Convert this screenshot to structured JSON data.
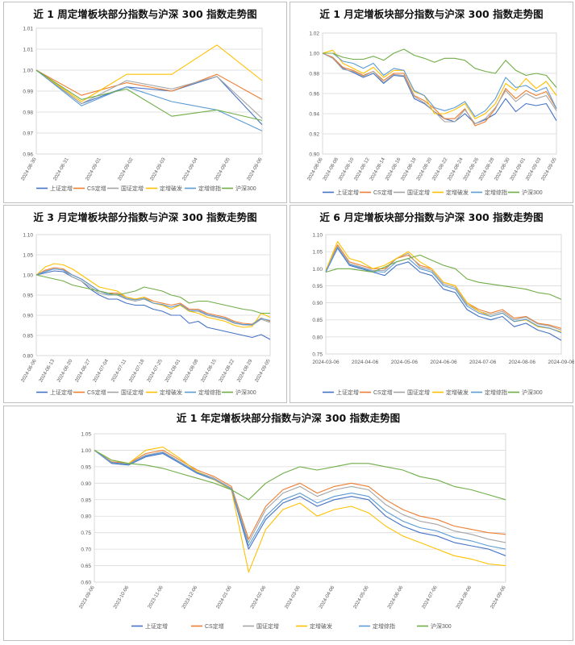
{
  "series_colors": [
    "#4472c4",
    "#ed7d31",
    "#a5a5a5",
    "#ffc000",
    "#5b9bd5",
    "#70ad47"
  ],
  "chart_data": [
    {
      "type": "line",
      "title": "近 1 周定增板块部分指数与沪深 300 指数走势图",
      "yticks": [
        "0.96",
        "0.97",
        "0.98",
        "0.99",
        "1.00",
        "1.01",
        "1.01"
      ],
      "ylim": [
        0.96,
        1.02
      ],
      "xticks": [
        "2024-08-30",
        "2024-08-31",
        "2024-09-01",
        "2024-09-02",
        "2024-09-03",
        "2024-09-04",
        "2024-09-05",
        "2024-09-06"
      ],
      "x": [
        "2024-08-30",
        "2024-09-02",
        "2024-09-03",
        "2024-09-04",
        "2024-09-05",
        "2024-09-06"
      ],
      "series": [
        {
          "name": "上证定增",
          "values": [
            1.0,
            0.984,
            0.992,
            0.99,
            0.997,
            0.974
          ]
        },
        {
          "name": "CS定增",
          "values": [
            1.0,
            0.988,
            0.994,
            0.99,
            0.998,
            0.986
          ]
        },
        {
          "name": "国证定增",
          "values": [
            1.0,
            0.984,
            0.995,
            0.991,
            0.997,
            0.977
          ]
        },
        {
          "name": "定增破发",
          "values": [
            1.0,
            0.985,
            0.998,
            0.998,
            1.012,
            0.995
          ]
        },
        {
          "name": "定增综指",
          "values": [
            1.0,
            0.983,
            0.992,
            0.985,
            0.981,
            0.971
          ]
        },
        {
          "name": "沪深300",
          "values": [
            1.0,
            0.986,
            0.991,
            0.978,
            0.981,
            0.976
          ]
        }
      ]
    },
    {
      "type": "line",
      "title": "近 1 月定增板块部分指数与沪深 300 指数走势图",
      "yticks": [
        "0.90",
        "0.92",
        "0.94",
        "0.96",
        "0.98",
        "1.00",
        "1.02"
      ],
      "ylim": [
        0.9,
        1.02
      ],
      "xticks": [
        "2024-08-06",
        "2024-08-08",
        "2024-08-10",
        "2024-08-12",
        "2024-08-14",
        "2024-08-16",
        "2024-08-18",
        "2024-08-20",
        "2024-08-22",
        "2024-08-24",
        "2024-08-26",
        "2024-08-28",
        "2024-08-30",
        "2024-09-01",
        "2024-09-03",
        "2024-09-05"
      ],
      "x": [
        "08-06",
        "08-07",
        "08-08",
        "08-09",
        "08-12",
        "08-13",
        "08-14",
        "08-15",
        "08-16",
        "08-19",
        "08-20",
        "08-21",
        "08-22",
        "08-23",
        "08-26",
        "08-27",
        "08-28",
        "08-29",
        "08-30",
        "09-02",
        "09-03",
        "09-04",
        "09-05",
        "09-06"
      ],
      "series": [
        {
          "name": "上证定增",
          "values": [
            1.0,
            0.995,
            0.985,
            0.981,
            0.976,
            0.98,
            0.97,
            0.978,
            0.977,
            0.955,
            0.95,
            0.942,
            0.935,
            0.932,
            0.94,
            0.93,
            0.934,
            0.94,
            0.955,
            0.942,
            0.95,
            0.948,
            0.95,
            0.933
          ]
        },
        {
          "name": "CS定增",
          "values": [
            1.0,
            0.996,
            0.986,
            0.983,
            0.978,
            0.982,
            0.973,
            0.98,
            0.98,
            0.958,
            0.953,
            0.945,
            0.935,
            0.935,
            0.945,
            0.928,
            0.932,
            0.945,
            0.965,
            0.955,
            0.963,
            0.958,
            0.962,
            0.945
          ]
        },
        {
          "name": "国证定增",
          "values": [
            1.0,
            0.995,
            0.984,
            0.982,
            0.977,
            0.982,
            0.971,
            0.979,
            0.978,
            0.957,
            0.951,
            0.942,
            0.932,
            0.932,
            0.944,
            0.93,
            0.935,
            0.946,
            0.963,
            0.952,
            0.96,
            0.955,
            0.958,
            0.943
          ]
        },
        {
          "name": "定增破发",
          "values": [
            1.0,
            1.003,
            0.99,
            0.985,
            0.98,
            0.986,
            0.976,
            0.983,
            0.983,
            0.962,
            0.958,
            0.94,
            0.94,
            0.944,
            0.95,
            0.935,
            0.94,
            0.95,
            0.97,
            0.963,
            0.975,
            0.965,
            0.972,
            0.958
          ]
        },
        {
          "name": "定增综指",
          "values": [
            1.0,
            1.0,
            0.992,
            0.99,
            0.985,
            0.99,
            0.978,
            0.985,
            0.983,
            0.963,
            0.958,
            0.946,
            0.943,
            0.946,
            0.952,
            0.937,
            0.943,
            0.955,
            0.976,
            0.966,
            0.968,
            0.962,
            0.966,
            0.945
          ]
        },
        {
          "name": "沪深300",
          "values": [
            1.0,
            1.0,
            0.996,
            0.994,
            0.994,
            0.997,
            0.993,
            1.0,
            1.004,
            0.998,
            0.995,
            0.991,
            0.995,
            0.995,
            0.993,
            0.985,
            0.982,
            0.98,
            0.993,
            0.983,
            0.978,
            0.98,
            0.978,
            0.966
          ]
        }
      ]
    },
    {
      "type": "line",
      "title": "近 3 月定增板块部分指数与沪深 300 指数走势图",
      "yticks": [
        "0.80",
        "0.85",
        "0.90",
        "0.95",
        "1.00",
        "1.05",
        "1.10"
      ],
      "ylim": [
        0.8,
        1.1
      ],
      "xticks": [
        "2024-06-06",
        "2024-06-13",
        "2024-06-20",
        "2024-06-27",
        "2024-07-04",
        "2024-07-11",
        "2024-07-18",
        "2024-07-25",
        "2024-08-01",
        "2024-08-08",
        "2024-08-15",
        "2024-08-22",
        "2024-08-29",
        "2024-09-05"
      ],
      "x": [
        "06-06",
        "06-10",
        "06-13",
        "06-17",
        "06-20",
        "06-24",
        "06-27",
        "07-01",
        "07-04",
        "07-08",
        "07-11",
        "07-15",
        "07-18",
        "07-22",
        "07-25",
        "07-29",
        "08-01",
        "08-05",
        "08-08",
        "08-12",
        "08-15",
        "08-19",
        "08-22",
        "08-26",
        "08-29",
        "09-02",
        "09-06"
      ],
      "series": [
        {
          "name": "上证定增",
          "values": [
            1.0,
            1.005,
            1.01,
            1.008,
            0.995,
            0.985,
            0.965,
            0.95,
            0.94,
            0.94,
            0.93,
            0.925,
            0.925,
            0.915,
            0.91,
            0.9,
            0.9,
            0.88,
            0.885,
            0.87,
            0.865,
            0.86,
            0.855,
            0.85,
            0.845,
            0.852,
            0.84
          ]
        },
        {
          "name": "CS定增",
          "values": [
            1.0,
            1.012,
            1.018,
            1.015,
            1.0,
            0.99,
            0.975,
            0.96,
            0.955,
            0.955,
            0.945,
            0.94,
            0.945,
            0.935,
            0.93,
            0.925,
            0.93,
            0.915,
            0.915,
            0.905,
            0.9,
            0.895,
            0.885,
            0.88,
            0.878,
            0.893,
            0.885
          ]
        },
        {
          "name": "国证定增",
          "values": [
            1.0,
            1.01,
            1.015,
            1.012,
            0.995,
            0.985,
            0.97,
            0.955,
            0.95,
            0.95,
            0.94,
            0.935,
            0.94,
            0.93,
            0.925,
            0.92,
            0.925,
            0.91,
            0.91,
            0.9,
            0.895,
            0.89,
            0.88,
            0.876,
            0.875,
            0.89,
            0.882
          ]
        },
        {
          "name": "定增破发",
          "values": [
            1.0,
            1.02,
            1.028,
            1.025,
            1.015,
            1.0,
            0.985,
            0.97,
            0.965,
            0.96,
            0.945,
            0.94,
            0.945,
            0.93,
            0.925,
            0.915,
            0.925,
            0.91,
            0.905,
            0.895,
            0.89,
            0.885,
            0.875,
            0.87,
            0.872,
            0.905,
            0.895
          ]
        },
        {
          "name": "定增综指",
          "values": [
            1.0,
            1.008,
            1.015,
            1.012,
            1.0,
            0.99,
            0.975,
            0.96,
            0.952,
            0.952,
            0.942,
            0.938,
            0.942,
            0.93,
            0.927,
            0.92,
            0.927,
            0.912,
            0.912,
            0.902,
            0.897,
            0.892,
            0.882,
            0.877,
            0.877,
            0.892,
            0.887
          ]
        },
        {
          "name": "沪深300",
          "values": [
            1.0,
            0.995,
            0.99,
            0.985,
            0.975,
            0.97,
            0.965,
            0.96,
            0.955,
            0.95,
            0.955,
            0.96,
            0.97,
            0.965,
            0.96,
            0.95,
            0.945,
            0.93,
            0.935,
            0.935,
            0.93,
            0.925,
            0.92,
            0.915,
            0.912,
            0.905,
            0.905
          ]
        }
      ]
    },
    {
      "type": "line",
      "title": "近 6 月定增板块部分指数与沪深 300 指数走势图",
      "yticks": [
        "0.75",
        "0.80",
        "0.85",
        "0.90",
        "0.95",
        "1.00",
        "1.05",
        "1.10"
      ],
      "ylim": [
        0.75,
        1.1
      ],
      "xticks": [
        "2024-03-06",
        "2024-04-06",
        "2024-05-06",
        "2024-06-06",
        "2024-07-06",
        "2024-08-06",
        "2024-09-06"
      ],
      "x": [
        "03-06",
        "03-15",
        "03-25",
        "04-03",
        "04-12",
        "04-22",
        "05-01",
        "05-10",
        "05-20",
        "05-29",
        "06-07",
        "06-17",
        "06-26",
        "07-05",
        "07-15",
        "07-24",
        "08-02",
        "08-12",
        "08-21",
        "08-30",
        "09-06"
      ],
      "series": [
        {
          "name": "上证定增",
          "values": [
            0.99,
            1.06,
            1.01,
            1.0,
            0.99,
            0.98,
            1.01,
            1.02,
            0.99,
            0.98,
            0.94,
            0.93,
            0.88,
            0.86,
            0.85,
            0.86,
            0.83,
            0.84,
            0.82,
            0.81,
            0.79
          ]
        },
        {
          "name": "CS定增",
          "values": [
            0.995,
            1.07,
            1.02,
            1.01,
            1.0,
            1.0,
            1.03,
            1.04,
            1.01,
            1.0,
            0.96,
            0.95,
            0.9,
            0.88,
            0.87,
            0.88,
            0.855,
            0.86,
            0.84,
            0.835,
            0.825
          ]
        },
        {
          "name": "国证定增",
          "values": [
            0.995,
            1.065,
            1.015,
            1.005,
            0.995,
            0.995,
            1.03,
            1.045,
            1.005,
            0.995,
            0.955,
            0.945,
            0.895,
            0.875,
            0.865,
            0.875,
            0.85,
            0.858,
            0.838,
            0.832,
            0.82
          ]
        },
        {
          "name": "定增破发",
          "values": [
            0.995,
            1.08,
            1.03,
            1.02,
            1.0,
            1.01,
            1.03,
            1.05,
            1.02,
            1.0,
            0.96,
            0.95,
            0.9,
            0.875,
            0.86,
            0.87,
            0.845,
            0.85,
            0.83,
            0.825,
            0.815
          ]
        },
        {
          "name": "定增综指",
          "values": [
            0.992,
            1.062,
            1.012,
            1.002,
            0.992,
            0.99,
            1.02,
            1.03,
            1.0,
            0.99,
            0.95,
            0.94,
            0.89,
            0.87,
            0.86,
            0.87,
            0.845,
            0.852,
            0.832,
            0.826,
            0.812
          ]
        },
        {
          "name": "沪深300",
          "values": [
            0.99,
            1.0,
            1.0,
            0.995,
            0.99,
            1.005,
            1.02,
            1.03,
            1.04,
            1.025,
            1.01,
            1.0,
            0.97,
            0.96,
            0.955,
            0.95,
            0.945,
            0.94,
            0.93,
            0.925,
            0.91
          ]
        }
      ]
    },
    {
      "type": "line",
      "title": "近 1 年定增板块部分指数与沪深 300 指数走势图",
      "yticks": [
        "0.60",
        "0.65",
        "0.70",
        "0.75",
        "0.80",
        "0.85",
        "0.90",
        "0.95",
        "1.00",
        "1.05"
      ],
      "ylim": [
        0.6,
        1.05
      ],
      "xticks": [
        "2023-09-06",
        "2023-10-06",
        "2023-11-06",
        "2023-12-06",
        "2024-01-06",
        "2024-02-06",
        "2024-03-06",
        "2024-04-06",
        "2024-05-06",
        "2024-06-06",
        "2024-07-06",
        "2024-08-06",
        "2024-09-06"
      ],
      "x": [
        "2023-09",
        "2023-10a",
        "2023-10b",
        "2023-11a",
        "2023-11b",
        "2023-12a",
        "2023-12b",
        "2024-01a",
        "2024-01b",
        "2024-02a",
        "2024-02b",
        "2024-03a",
        "2024-03b",
        "2024-04a",
        "2024-04b",
        "2024-05a",
        "2024-05b",
        "2024-06a",
        "2024-06b",
        "2024-07a",
        "2024-07b",
        "2024-08a",
        "2024-08b",
        "2024-09a",
        "2024-09b"
      ],
      "series": [
        {
          "name": "上证定增",
          "values": [
            1.0,
            0.96,
            0.955,
            0.98,
            0.99,
            0.96,
            0.93,
            0.91,
            0.88,
            0.7,
            0.79,
            0.84,
            0.86,
            0.83,
            0.85,
            0.86,
            0.85,
            0.8,
            0.77,
            0.75,
            0.74,
            0.72,
            0.71,
            0.7,
            0.68
          ]
        },
        {
          "name": "CS定增",
          "values": [
            1.0,
            0.965,
            0.96,
            0.99,
            1.0,
            0.97,
            0.94,
            0.92,
            0.89,
            0.73,
            0.83,
            0.88,
            0.9,
            0.87,
            0.89,
            0.9,
            0.89,
            0.85,
            0.82,
            0.8,
            0.79,
            0.77,
            0.76,
            0.75,
            0.745
          ]
        },
        {
          "name": "国证定增",
          "values": [
            1.0,
            0.962,
            0.958,
            0.985,
            0.995,
            0.965,
            0.935,
            0.915,
            0.885,
            0.72,
            0.82,
            0.87,
            0.89,
            0.86,
            0.88,
            0.89,
            0.88,
            0.835,
            0.805,
            0.785,
            0.775,
            0.755,
            0.745,
            0.73,
            0.72
          ]
        },
        {
          "name": "定增破发",
          "values": [
            1.0,
            0.97,
            0.96,
            1.0,
            1.01,
            0.975,
            0.935,
            0.91,
            0.88,
            0.63,
            0.76,
            0.82,
            0.84,
            0.8,
            0.82,
            0.83,
            0.81,
            0.77,
            0.74,
            0.72,
            0.7,
            0.68,
            0.67,
            0.655,
            0.65
          ]
        },
        {
          "name": "定增综指",
          "values": [
            1.0,
            0.963,
            0.957,
            0.983,
            0.993,
            0.962,
            0.932,
            0.912,
            0.882,
            0.71,
            0.8,
            0.85,
            0.87,
            0.84,
            0.86,
            0.87,
            0.86,
            0.815,
            0.785,
            0.765,
            0.755,
            0.735,
            0.725,
            0.71,
            0.7
          ]
        },
        {
          "name": "沪深300",
          "values": [
            1.0,
            0.97,
            0.96,
            0.955,
            0.945,
            0.93,
            0.915,
            0.9,
            0.88,
            0.85,
            0.9,
            0.93,
            0.95,
            0.94,
            0.95,
            0.96,
            0.96,
            0.95,
            0.94,
            0.92,
            0.91,
            0.89,
            0.88,
            0.865,
            0.85
          ]
        }
      ]
    }
  ]
}
